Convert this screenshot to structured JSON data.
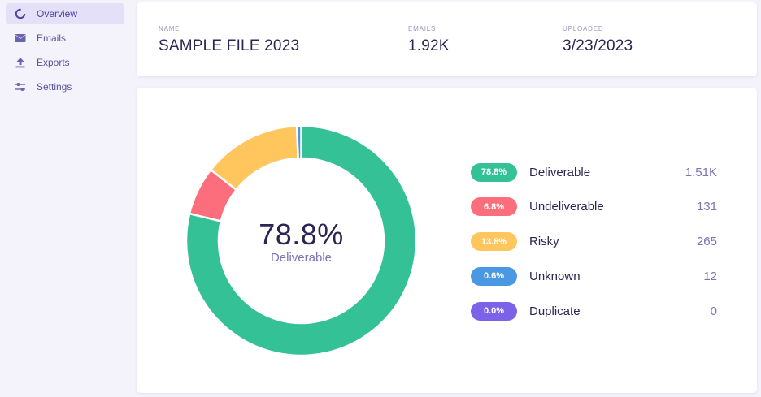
{
  "sidebar": {
    "items": [
      {
        "label": "Overview",
        "icon": "overview-ring-icon",
        "active": true
      },
      {
        "label": "Emails",
        "icon": "envelope-icon",
        "active": false
      },
      {
        "label": "Exports",
        "icon": "upload-icon",
        "active": false
      },
      {
        "label": "Settings",
        "icon": "sliders-icon",
        "active": false
      }
    ]
  },
  "file_info": {
    "name_label": "NAME",
    "name_value": "SAMPLE FILE 2023",
    "emails_label": "EMAILS",
    "emails_value": "1.92K",
    "uploaded_label": "UPLOADED",
    "uploaded_value": "3/23/2023"
  },
  "summary": {
    "center_percent": "78.8%",
    "center_label": "Deliverable"
  },
  "results": [
    {
      "pct": "78.8%",
      "label": "Deliverable",
      "count": "1.51K",
      "color": "#34c196"
    },
    {
      "pct": "6.8%",
      "label": "Undeliverable",
      "count": "131",
      "color": "#fc6e7b"
    },
    {
      "pct": "13.8%",
      "label": "Risky",
      "count": "265",
      "color": "#fec65c"
    },
    {
      "pct": "0.6%",
      "label": "Unknown",
      "count": "12",
      "color": "#4a98e3"
    },
    {
      "pct": "0.0%",
      "label": "Duplicate",
      "count": "0",
      "color": "#7c62e8"
    }
  ],
  "chart_data": {
    "type": "pie",
    "categories": [
      "Deliverable",
      "Undeliverable",
      "Risky",
      "Unknown",
      "Duplicate"
    ],
    "values": [
      78.8,
      6.8,
      13.8,
      0.6,
      0.0
    ],
    "colors": [
      "#34c196",
      "#fc6e7b",
      "#fec65c",
      "#4a98e3",
      "#7c62e8"
    ]
  }
}
